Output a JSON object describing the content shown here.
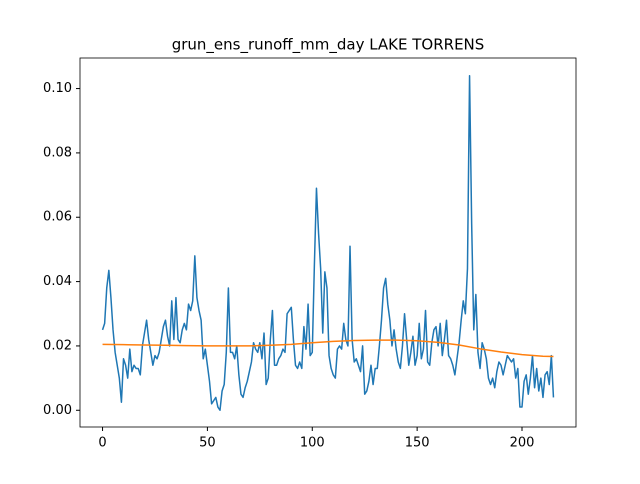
{
  "chart_data": {
    "type": "line",
    "title": "grun_ens_runoff_mm_day LAKE TORRENS",
    "xlim": [
      -10.75,
      225.75
    ],
    "xticks": [
      0,
      50,
      100,
      150,
      200
    ],
    "ylim": [
      -0.0052,
      0.1095
    ],
    "yticks": [
      {
        "value": 0,
        "label": "0.00"
      },
      0.02,
      0.04,
      0.06,
      0.08,
      {
        "value": 0.1,
        "label": "0.10"
      }
    ],
    "series": [
      {
        "color": "#1f77b4",
        "x": [
          0,
          1,
          2,
          3,
          4,
          5,
          6,
          7,
          8,
          9,
          10,
          11,
          12,
          13,
          14,
          15,
          16,
          17,
          18,
          19,
          20,
          21,
          22,
          23,
          24,
          25,
          26,
          27,
          28,
          29,
          30,
          31,
          32,
          33,
          34,
          35,
          36,
          37,
          38,
          39,
          40,
          41,
          42,
          43,
          44,
          45,
          46,
          47,
          48,
          49,
          50,
          51,
          52,
          53,
          54,
          55,
          56,
          57,
          58,
          59,
          60,
          61,
          62,
          63,
          64,
          65,
          66,
          67,
          68,
          69,
          70,
          71,
          72,
          73,
          74,
          75,
          76,
          77,
          78,
          79,
          80,
          81,
          82,
          83,
          84,
          85,
          86,
          87,
          88,
          89,
          90,
          91,
          92,
          93,
          94,
          95,
          96,
          97,
          98,
          99,
          100,
          101,
          102,
          103,
          104,
          105,
          106,
          107,
          108,
          109,
          110,
          111,
          112,
          113,
          114,
          115,
          116,
          117,
          118,
          119,
          120,
          121,
          122,
          123,
          124,
          125,
          126,
          127,
          128,
          129,
          130,
          131,
          132,
          133,
          134,
          135,
          136,
          137,
          138,
          139,
          140,
          141,
          142,
          143,
          144,
          145,
          146,
          147,
          148,
          149,
          150,
          151,
          152,
          153,
          154,
          155,
          156,
          157,
          158,
          159,
          160,
          161,
          162,
          163,
          164,
          165,
          166,
          167,
          168,
          169,
          170,
          171,
          172,
          173,
          174,
          175,
          176,
          177,
          178,
          179,
          180,
          181,
          182,
          183,
          184,
          185,
          186,
          187,
          188,
          189,
          190,
          191,
          192,
          193,
          194,
          195,
          196,
          197,
          198,
          199,
          200,
          201,
          202,
          203,
          204,
          205,
          206,
          207,
          208,
          209,
          210,
          211,
          212,
          213,
          214,
          215
        ],
        "values": [
          0.025,
          0.027,
          0.038,
          0.0435,
          0.035,
          0.025,
          0.018,
          0.014,
          0.01,
          0.0025,
          0.016,
          0.014,
          0.01,
          0.019,
          0.012,
          0.014,
          0.013,
          0.013,
          0.011,
          0.02,
          0.024,
          0.028,
          0.022,
          0.018,
          0.014,
          0.017,
          0.016,
          0.018,
          0.022,
          0.026,
          0.028,
          0.023,
          0.02,
          0.034,
          0.022,
          0.035,
          0.022,
          0.021,
          0.025,
          0.027,
          0.025,
          0.033,
          0.031,
          0.034,
          0.048,
          0.035,
          0.031,
          0.028,
          0.016,
          0.019,
          0.014,
          0.009,
          0.002,
          0.003,
          0.004,
          0.001,
          0.0,
          0.006,
          0.008,
          0.018,
          0.038,
          0.018,
          0.018,
          0.016,
          0.02,
          0.011,
          0.005,
          0.004,
          0.007,
          0.009,
          0.012,
          0.015,
          0.021,
          0.019,
          0.018,
          0.021,
          0.016,
          0.024,
          0.008,
          0.01,
          0.022,
          0.031,
          0.014,
          0.014,
          0.016,
          0.017,
          0.019,
          0.018,
          0.03,
          0.031,
          0.032,
          0.022,
          0.014,
          0.013,
          0.015,
          0.013,
          0.026,
          0.019,
          0.033,
          0.017,
          0.018,
          0.045,
          0.069,
          0.055,
          0.044,
          0.024,
          0.043,
          0.038,
          0.017,
          0.013,
          0.011,
          0.01,
          0.019,
          0.02,
          0.019,
          0.027,
          0.022,
          0.02,
          0.051,
          0.022,
          0.015,
          0.016,
          0.014,
          0.012,
          0.02,
          0.005,
          0.006,
          0.009,
          0.014,
          0.008,
          0.013,
          0.013,
          0.02,
          0.028,
          0.038,
          0.041,
          0.033,
          0.028,
          0.02,
          0.025,
          0.019,
          0.015,
          0.013,
          0.02,
          0.03,
          0.022,
          0.014,
          0.018,
          0.023,
          0.014,
          0.017,
          0.027,
          0.016,
          0.019,
          0.031,
          0.015,
          0.014,
          0.021,
          0.025,
          0.026,
          0.02,
          0.027,
          0.017,
          0.022,
          0.028,
          0.017,
          0.016,
          0.014,
          0.011,
          0.016,
          0.021,
          0.028,
          0.034,
          0.03,
          0.044,
          0.104,
          0.058,
          0.025,
          0.036,
          0.018,
          0.013,
          0.021,
          0.019,
          0.016,
          0.01,
          0.008,
          0.01,
          0.007,
          0.012,
          0.015,
          0.014,
          0.011,
          0.014,
          0.017,
          0.016,
          0.015,
          0.016,
          0.01,
          0.013,
          0.001,
          0.001,
          0.009,
          0.011,
          0.005,
          0.01,
          0.017,
          0.007,
          0.013,
          0.006,
          0.01,
          0.004,
          0.011,
          0.012,
          0.008,
          0.017,
          0.004
        ]
      },
      {
        "color": "#ff7f0e",
        "x": [
          0,
          10,
          20,
          30,
          40,
          50,
          60,
          70,
          80,
          90,
          100,
          110,
          120,
          130,
          140,
          150,
          160,
          170,
          180,
          190,
          200,
          210,
          215
        ],
        "values": [
          0.0205,
          0.0204,
          0.0203,
          0.0202,
          0.0201,
          0.02,
          0.02,
          0.02,
          0.0202,
          0.0205,
          0.021,
          0.0214,
          0.0217,
          0.0218,
          0.0218,
          0.0216,
          0.0211,
          0.0203,
          0.0191,
          0.0181,
          0.0173,
          0.0168,
          0.0167
        ]
      }
    ]
  }
}
